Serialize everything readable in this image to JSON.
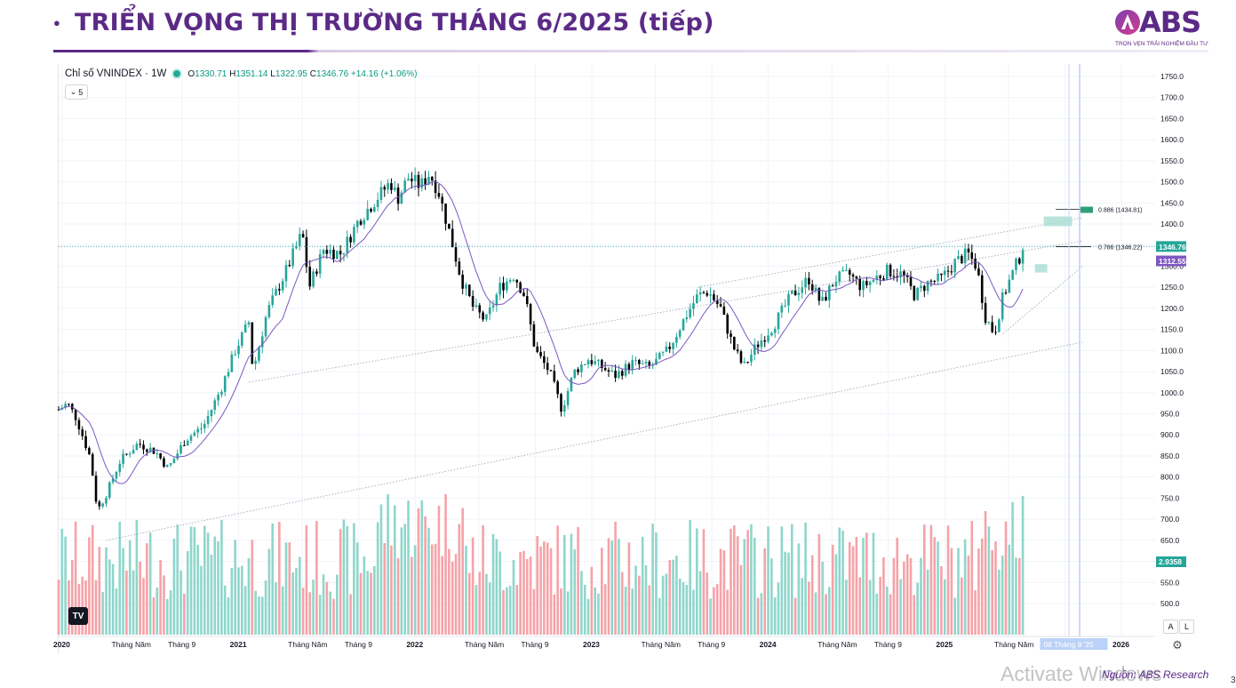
{
  "slide": {
    "title": "TRIỂN VỌNG THỊ TRƯỜNG THÁNG 6/2025 (tiếp)",
    "logo_text": "ABS",
    "logo_slogan": "TRỌN VẸN TRẢI NGHIỆM ĐẦU TƯ",
    "source": "Nguồn: ABS Research",
    "watermark": "Activate Windows",
    "page_number": "3",
    "accent_color": "#5b2a86"
  },
  "chart_header": {
    "symbol": "Chỉ số VNINDEX · 1W",
    "open": "1330.71",
    "high": "1351.14",
    "low": "1322.95",
    "close": "1346.76",
    "change": "+14.16 (+1.06%)",
    "indicator_count": "5"
  },
  "chart_controls": {
    "tv_logo": "TV",
    "auto_label": "A",
    "log_label": "L",
    "settings_icon": "gear-icon"
  },
  "chart_data": {
    "type": "candlestick",
    "interval": "1W",
    "up_color": "#26a69a",
    "down_color": "#000000",
    "ma_color": "#7e57c2",
    "volume_up_color": "#8fd6cb",
    "volume_down_color": "#f5a3a8",
    "ylim": [
      470,
      1770
    ],
    "y_ticks": [
      "1750.0",
      "1700.0",
      "1650.0",
      "1600.0",
      "1550.0",
      "1500.0",
      "1450.0",
      "1400.0",
      "1350.0",
      "1300.0",
      "1250.0",
      "1200.0",
      "1150.0",
      "1100.0",
      "1050.0",
      "1000.0",
      "950.0",
      "900.0",
      "850.0",
      "800.0",
      "750.0",
      "700.0",
      "650.0",
      "600.0",
      "550.0",
      "500.0"
    ],
    "x_labels": [
      "2020",
      "Tháng Năm",
      "Tháng 9",
      "2021",
      "Tháng Năm",
      "Tháng 9",
      "2022",
      "Tháng Năm",
      "Tháng 9",
      "2023",
      "Tháng Năm",
      "Tháng 9",
      "2024",
      "Tháng Năm",
      "Tháng 9",
      "2025",
      "Tháng Năm",
      "08 Tháng 9 '25",
      "2026"
    ],
    "price_path": [
      [
        2020.0,
        960
      ],
      [
        2020.05,
        975
      ],
      [
        2020.1,
        940
      ],
      [
        2020.18,
        845
      ],
      [
        2020.22,
        720
      ],
      [
        2020.27,
        760
      ],
      [
        2020.35,
        840
      ],
      [
        2020.45,
        880
      ],
      [
        2020.55,
        860
      ],
      [
        2020.62,
        820
      ],
      [
        2020.72,
        890
      ],
      [
        2020.82,
        920
      ],
      [
        2020.92,
        1010
      ],
      [
        2021.0,
        1100
      ],
      [
        2021.08,
        1170
      ],
      [
        2021.1,
        1050
      ],
      [
        2021.18,
        1190
      ],
      [
        2021.3,
        1300
      ],
      [
        2021.38,
        1380
      ],
      [
        2021.42,
        1250
      ],
      [
        2021.5,
        1340
      ],
      [
        2021.6,
        1330
      ],
      [
        2021.7,
        1410
      ],
      [
        2021.8,
        1460
      ],
      [
        2021.88,
        1500
      ],
      [
        2021.92,
        1460
      ],
      [
        2021.98,
        1510
      ],
      [
        2022.05,
        1490
      ],
      [
        2022.1,
        1520
      ],
      [
        2022.15,
        1480
      ],
      [
        2022.22,
        1370
      ],
      [
        2022.28,
        1270
      ],
      [
        2022.35,
        1200
      ],
      [
        2022.42,
        1170
      ],
      [
        2022.5,
        1250
      ],
      [
        2022.58,
        1280
      ],
      [
        2022.64,
        1230
      ],
      [
        2022.7,
        1100
      ],
      [
        2022.78,
        1050
      ],
      [
        2022.85,
        960
      ],
      [
        2022.92,
        1050
      ],
      [
        2023.0,
        1080
      ],
      [
        2023.08,
        1060
      ],
      [
        2023.15,
        1040
      ],
      [
        2023.25,
        1070
      ],
      [
        2023.35,
        1060
      ],
      [
        2023.45,
        1100
      ],
      [
        2023.55,
        1180
      ],
      [
        2023.62,
        1230
      ],
      [
        2023.68,
        1240
      ],
      [
        2023.75,
        1200
      ],
      [
        2023.82,
        1110
      ],
      [
        2023.88,
        1060
      ],
      [
        2023.95,
        1110
      ],
      [
        2024.05,
        1160
      ],
      [
        2024.15,
        1230
      ],
      [
        2024.25,
        1270
      ],
      [
        2024.32,
        1210
      ],
      [
        2024.4,
        1270
      ],
      [
        2024.48,
        1280
      ],
      [
        2024.55,
        1250
      ],
      [
        2024.62,
        1270
      ],
      [
        2024.7,
        1290
      ],
      [
        2024.78,
        1280
      ],
      [
        2024.85,
        1230
      ],
      [
        2024.92,
        1260
      ],
      [
        2025.0,
        1270
      ],
      [
        2025.08,
        1310
      ],
      [
        2025.15,
        1330
      ],
      [
        2025.2,
        1300
      ],
      [
        2025.25,
        1180
      ],
      [
        2025.3,
        1140
      ],
      [
        2025.35,
        1230
      ],
      [
        2025.42,
        1300
      ],
      [
        2025.47,
        1346.76
      ]
    ],
    "last_price": "1346.76",
    "ma_value": "1312.55",
    "volume_last": "2.9358",
    "fib_levels": [
      {
        "label": "0.886 (1434.81)",
        "value": 1434.81
      },
      {
        "label": "0.786 (1346.22)",
        "value": 1346.22
      }
    ],
    "target_boxes": [
      {
        "date_from": 2025.58,
        "date_to": 2025.74,
        "low": 1395,
        "high": 1418
      },
      {
        "date_from": 2025.53,
        "date_to": 2025.6,
        "low": 1285,
        "high": 1305
      }
    ],
    "trendlines": [
      {
        "from": [
          2020.27,
          650
        ],
        "to": [
          2025.8,
          1120
        ]
      },
      {
        "from": [
          2021.08,
          1025
        ],
        "to": [
          2025.8,
          1360
        ]
      },
      {
        "from": [
          2023.62,
          1250
        ],
        "to": [
          2025.8,
          1415
        ]
      },
      {
        "from": [
          2025.35,
          1140
        ],
        "to": [
          2025.8,
          1300
        ]
      }
    ],
    "grid": true,
    "legend": "none"
  }
}
